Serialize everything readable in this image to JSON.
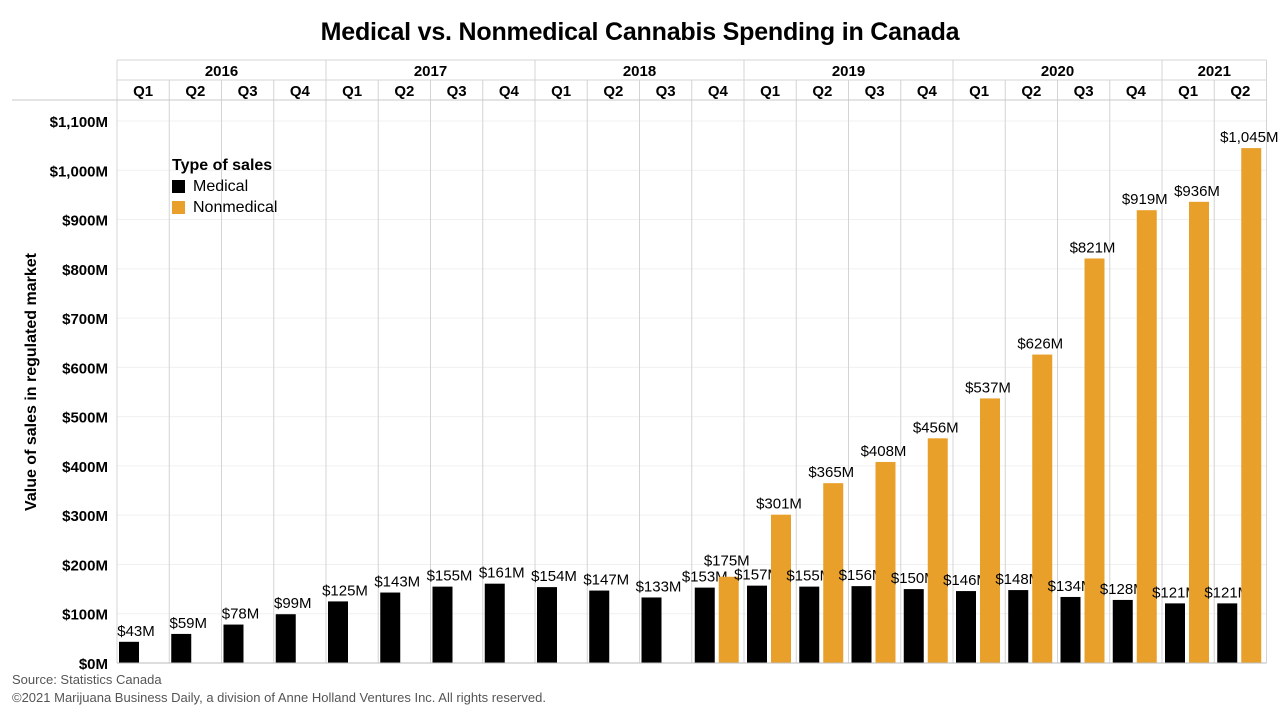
{
  "chart_data": {
    "type": "bar",
    "title": "Medical vs. Nonmedical Cannabis Spending in Canada",
    "ylabel": "Value of sales in regulated market",
    "xlabel": "",
    "ylim": [
      0,
      1100
    ],
    "yticks": [
      0,
      100,
      200,
      300,
      400,
      500,
      600,
      700,
      800,
      900,
      1000,
      1100
    ],
    "ytick_labels": [
      "$0M",
      "$100M",
      "$200M",
      "$300M",
      "$400M",
      "$500M",
      "$600M",
      "$700M",
      "$800M",
      "$900M",
      "$1,000M",
      "$1,100M"
    ],
    "years": [
      {
        "label": "2016",
        "count": 4
      },
      {
        "label": "2017",
        "count": 4
      },
      {
        "label": "2018",
        "count": 4
      },
      {
        "label": "2019",
        "count": 4
      },
      {
        "label": "2020",
        "count": 4
      },
      {
        "label": "2021",
        "count": 2
      }
    ],
    "categories": [
      "Q1",
      "Q2",
      "Q3",
      "Q4",
      "Q1",
      "Q2",
      "Q3",
      "Q4",
      "Q1",
      "Q2",
      "Q3",
      "Q4",
      "Q1",
      "Q2",
      "Q3",
      "Q4",
      "Q1",
      "Q2",
      "Q3",
      "Q4",
      "Q1",
      "Q2"
    ],
    "legend_title": "Type of sales",
    "legend_position": "top-left",
    "series": [
      {
        "name": "Medical",
        "color": "#000000",
        "values": [
          43,
          59,
          78,
          99,
          125,
          143,
          155,
          161,
          154,
          147,
          133,
          153,
          157,
          155,
          156,
          150,
          146,
          148,
          134,
          128,
          121,
          121
        ],
        "labels": [
          "$43M",
          "$59M",
          "$78M",
          "$99M",
          "$125M",
          "$143M",
          "$155M",
          "$161M",
          "$154M",
          "$147M",
          "$133M",
          "$153M",
          "$157M",
          "$155M",
          "$156M",
          "$150M",
          "$146M",
          "$148M",
          "$134M",
          "$128M",
          "$121M",
          "$121M"
        ]
      },
      {
        "name": "Nonmedical",
        "color": "#E8A02A",
        "values": [
          null,
          null,
          null,
          null,
          null,
          null,
          null,
          null,
          null,
          null,
          null,
          175,
          301,
          365,
          408,
          456,
          537,
          626,
          821,
          919,
          936,
          1045
        ],
        "labels": [
          "",
          "",
          "",
          "",
          "",
          "",
          "",
          "",
          "",
          "",
          "",
          "$175M",
          "$301M",
          "$365M",
          "$408M",
          "$456M",
          "$537M",
          "$626M",
          "$821M",
          "$919M",
          "$936M",
          "$1,045M"
        ]
      }
    ]
  },
  "footer": {
    "source": "Source: Statistics Canada",
    "copyright": "©2021 Marijuana Business Daily, a division of Anne Holland Ventures Inc. All rights reserved."
  }
}
